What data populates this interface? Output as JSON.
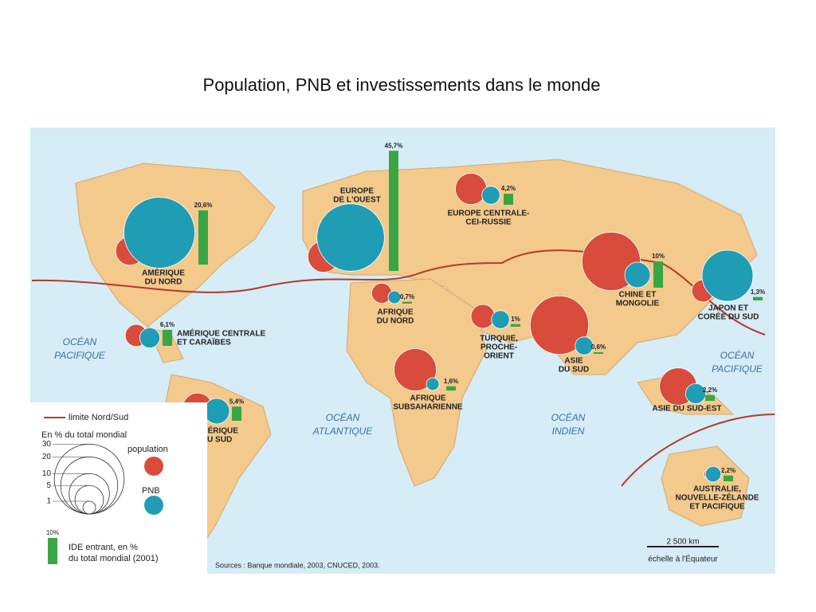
{
  "title": "Population, PNB et investissements dans le monde",
  "regions": [
    {
      "label": [
        "AMÉRIQUE",
        "DU NORD"
      ],
      "population": 5,
      "gnp": 31,
      "ide": 20.6,
      "ide_label": "20,6%"
    },
    {
      "label": [
        "EUROPE",
        "DE L'OUEST"
      ],
      "population": 6,
      "gnp": 28,
      "ide": 45.7,
      "ide_label": "45,7%"
    },
    {
      "label": [
        "EUROPE CENTRALE-",
        "CEI-RUSSIE"
      ],
      "population": 6,
      "gnp": 2,
      "ide": 4.2,
      "ide_label": "4,2%"
    },
    {
      "label": [
        "AFRIQUE",
        "DU NORD"
      ],
      "population": 2.5,
      "gnp": 1,
      "ide": 0.7,
      "ide_label": "0,7%"
    },
    {
      "label": [
        "AMÉRIQUE CENTRALE",
        "ET CARAÏBES"
      ],
      "population": 3,
      "gnp": 2.5,
      "ide": 6.1,
      "ide_label": "6,1%"
    },
    {
      "label": [
        "TURQUIE,",
        "PROCHE-",
        "ORIENT"
      ],
      "population": 3.5,
      "gnp": 2,
      "ide": 1,
      "ide_label": "1%"
    },
    {
      "label": [
        "CHINE ET",
        "MONGOLIE"
      ],
      "population": 21,
      "gnp": 4,
      "ide": 10,
      "ide_label": "10%"
    },
    {
      "label": [
        "JAPON ET",
        "CORÉE DU SUD"
      ],
      "population": 3,
      "gnp": 16,
      "ide": 1.3,
      "ide_label": "1,3%"
    },
    {
      "label": [
        "ASIE",
        "DU SUD"
      ],
      "population": 21,
      "gnp": 2,
      "ide": 0.6,
      "ide_label": "0,6%"
    },
    {
      "label": [
        "AFRIQUE",
        "SUBSAHARIENNE"
      ],
      "population": 11,
      "gnp": 1,
      "ide": 1.6,
      "ide_label": "1,6%"
    },
    {
      "label": [
        "AMÉRIQUE",
        "DU SUD"
      ],
      "population": 5.5,
      "gnp": 4,
      "ide": 5.4,
      "ide_label": "5,4%"
    },
    {
      "label": [
        "ASIE DU SUD-EST"
      ],
      "population": 8.5,
      "gnp": 2.5,
      "ide": 2.2,
      "ide_label": "2,2%"
    },
    {
      "label": [
        "AUSTRALIE,",
        "NOUVELLE-ZÉLANDE",
        "ET PACIFIQUE"
      ],
      "population": 0.5,
      "gnp": 1.5,
      "ide": 2.2,
      "ide_label": "2,2%"
    }
  ],
  "oceans": [
    [
      "OCÉAN",
      "PACIFIQUE"
    ],
    [
      "OCÉAN",
      "ATLANTIQUE"
    ],
    [
      "OCÉAN",
      "INDIEN"
    ],
    [
      "OCÉAN",
      "PACIFIQUE"
    ]
  ],
  "legend": {
    "limit": "limite Nord/Sud",
    "unit": "En % du total mondial",
    "scale": [
      30,
      20,
      10,
      5,
      1
    ],
    "population": "population",
    "gnp": "PNB",
    "sample_ide": {
      "value": 10,
      "label": "10%"
    },
    "ide_text": [
      "IDE entrant, en %",
      "du total mondial (2001)"
    ]
  },
  "sources": "Sources : Banque mondiale, 2003, CNUCED, 2003.",
  "scale_bar": {
    "distance": "2 500 km",
    "note": "échelle à l'Équateur"
  }
}
